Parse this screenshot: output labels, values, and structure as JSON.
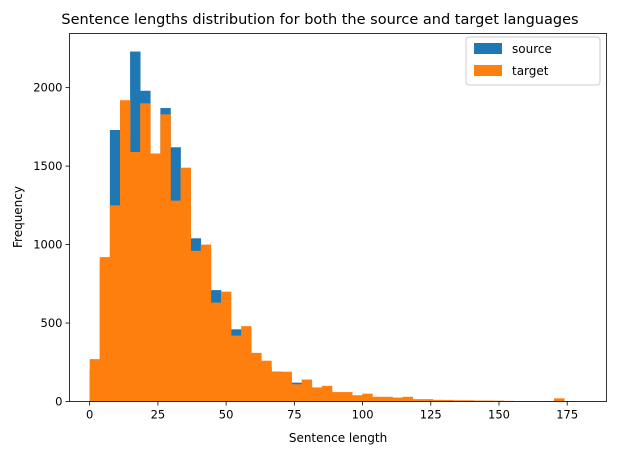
{
  "chart_data": {
    "type": "bar",
    "title": "Sentence lengths distribution for both the source and target languages",
    "xlabel": "Sentence length",
    "ylabel": "Frequency",
    "xlim": [
      -7.4,
      189.4
    ],
    "ylim": [
      0,
      2345
    ],
    "xticks": [
      0,
      25,
      50,
      75,
      100,
      125,
      150,
      175
    ],
    "yticks": [
      0,
      500,
      1000,
      1500,
      2000
    ],
    "legend_position": "top-right",
    "bin_width": 3.7,
    "series": [
      {
        "name": "source",
        "color": "#1f77b4",
        "bin_starts": [
          0,
          3.7,
          7.4,
          11.1,
          14.8,
          18.5,
          22.2,
          25.9,
          29.6,
          33.3,
          37,
          40.7,
          44.4,
          48.1,
          51.8,
          55.5,
          59.2,
          62.9,
          66.6,
          70.3,
          74,
          77.7,
          81.4,
          85.1,
          88.8,
          92.5,
          96.2,
          99.9,
          103.6,
          107.3,
          111,
          114.7,
          118.4,
          122.1,
          125.8,
          129.5,
          133.2,
          136.9,
          140.6,
          144.3,
          148,
          151.7,
          155.4,
          159.1,
          162.8,
          166.5,
          170.2,
          173.9,
          177.6,
          181.3
        ],
        "values": [
          200,
          900,
          1730,
          1700,
          2230,
          1980,
          1580,
          1870,
          1620,
          1440,
          1040,
          960,
          710,
          440,
          460,
          330,
          260,
          220,
          190,
          160,
          120,
          110,
          80,
          70,
          50,
          40,
          30,
          30,
          25,
          20,
          20,
          18,
          12,
          10,
          10,
          8,
          6,
          6,
          5,
          5,
          4,
          3,
          2,
          2,
          1,
          1,
          15,
          2,
          1,
          1
        ]
      },
      {
        "name": "target",
        "color": "#ff7f0e",
        "bin_starts": [
          0,
          3.7,
          7.4,
          11.1,
          14.8,
          18.5,
          22.2,
          25.9,
          29.6,
          33.3,
          37,
          40.7,
          44.4,
          48.1,
          51.8,
          55.5,
          59.2,
          62.9,
          66.6,
          70.3,
          74,
          77.7,
          81.4,
          85.1,
          88.8,
          92.5,
          96.2,
          99.9,
          103.6,
          107.3,
          111,
          114.7,
          118.4,
          122.1,
          125.8,
          129.5,
          133.2,
          136.9,
          140.6,
          144.3,
          148,
          151.7,
          155.4,
          159.1,
          162.8,
          166.5,
          170.2,
          173.9,
          177.6,
          181.3
        ],
        "values": [
          270,
          920,
          1250,
          1920,
          1590,
          1900,
          1580,
          1830,
          1280,
          1490,
          960,
          1000,
          630,
          700,
          420,
          480,
          310,
          260,
          190,
          190,
          110,
          140,
          90,
          100,
          60,
          60,
          40,
          50,
          30,
          30,
          25,
          30,
          15,
          15,
          10,
          10,
          8,
          8,
          6,
          6,
          5,
          4,
          3,
          3,
          2,
          2,
          20,
          2,
          1,
          1
        ]
      }
    ]
  }
}
